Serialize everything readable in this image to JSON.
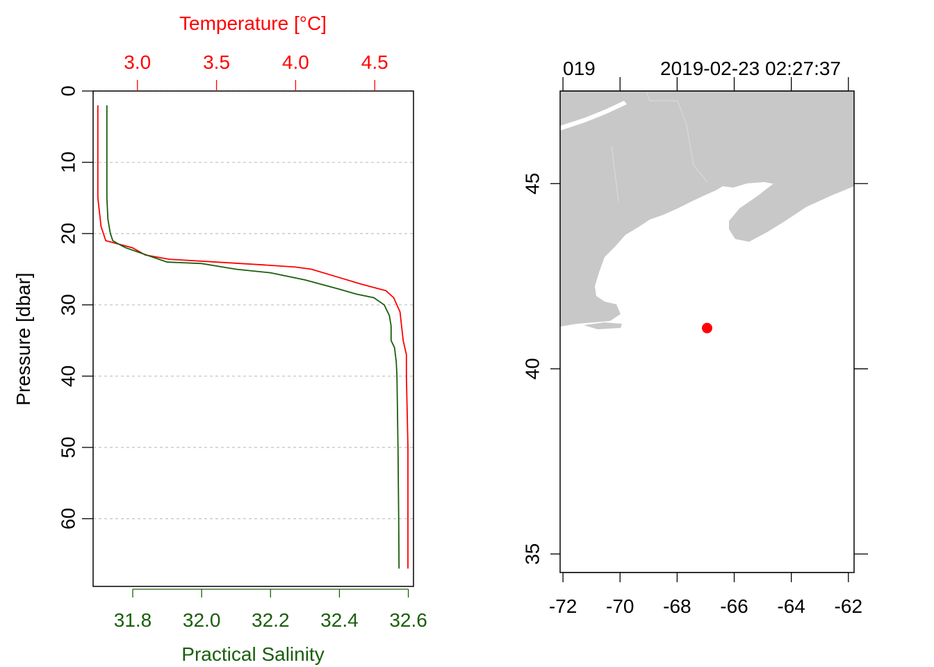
{
  "chart_data": [
    {
      "type": "line",
      "orientation": "vertical-profile",
      "y_axis": {
        "label": "Pressure [dbar]",
        "range": [
          0,
          69.5
        ],
        "reversed": true,
        "ticks": [
          0,
          10,
          20,
          30,
          40,
          50,
          60
        ],
        "tick_labels": [
          "0",
          "10",
          "20",
          "30",
          "40",
          "50",
          "60"
        ],
        "gridlines": true
      },
      "bottom_axis": {
        "label": "Practical Salinity",
        "color": "#1a5e0b",
        "range": [
          31.685,
          32.615
        ],
        "ticks": [
          31.8,
          32.0,
          32.2,
          32.4,
          32.6
        ],
        "tick_labels": [
          "31.8",
          "32.0",
          "32.2",
          "32.4",
          "32.6"
        ]
      },
      "top_axis": {
        "label": "Temperature [°C]",
        "color": "#ff0000",
        "range": [
          2.72,
          4.745
        ],
        "ticks": [
          3.0,
          3.5,
          4.0,
          4.5
        ],
        "tick_labels": [
          "3.0",
          "3.5",
          "4.0",
          "4.5"
        ]
      },
      "series": [
        {
          "quantity": "temperature",
          "axis": "top",
          "color": "#ff0000",
          "points": [
            [
              2.75,
              2
            ],
            [
              2.75,
              10
            ],
            [
              2.75,
              15
            ],
            [
              2.76,
              17
            ],
            [
              2.77,
              19
            ],
            [
              2.8,
              21
            ],
            [
              2.97,
              22
            ],
            [
              3.05,
              23
            ],
            [
              3.2,
              23.6
            ],
            [
              3.5,
              24
            ],
            [
              3.8,
              24.4
            ],
            [
              4.0,
              24.7
            ],
            [
              4.1,
              25
            ],
            [
              4.25,
              26
            ],
            [
              4.4,
              27
            ],
            [
              4.5,
              27.6
            ],
            [
              4.57,
              28
            ],
            [
              4.62,
              29
            ],
            [
              4.66,
              31
            ],
            [
              4.68,
              35
            ],
            [
              4.7,
              37
            ],
            [
              4.7,
              40
            ],
            [
              4.71,
              50
            ],
            [
              4.71,
              60
            ],
            [
              4.71,
              67
            ]
          ]
        },
        {
          "quantity": "salinity",
          "axis": "bottom",
          "color": "#1a5e0b",
          "points": [
            [
              31.725,
              2
            ],
            [
              31.725,
              10
            ],
            [
              31.725,
              15
            ],
            [
              31.728,
              18
            ],
            [
              31.735,
              20
            ],
            [
              31.742,
              21
            ],
            [
              31.76,
              21.5
            ],
            [
              31.78,
              22
            ],
            [
              31.84,
              23
            ],
            [
              31.9,
              24
            ],
            [
              32.0,
              24.2
            ],
            [
              32.1,
              25
            ],
            [
              32.2,
              25.5
            ],
            [
              32.3,
              26.5
            ],
            [
              32.4,
              27.8
            ],
            [
              32.45,
              28.5
            ],
            [
              32.5,
              29
            ],
            [
              32.53,
              30
            ],
            [
              32.545,
              31.5
            ],
            [
              32.55,
              33
            ],
            [
              32.55,
              35
            ],
            [
              32.56,
              36
            ],
            [
              32.565,
              38
            ],
            [
              32.567,
              40
            ],
            [
              32.57,
              50
            ],
            [
              32.572,
              60
            ],
            [
              32.573,
              67
            ]
          ]
        }
      ]
    },
    {
      "type": "map",
      "x_axis": {
        "range": [
          -72.1,
          -61.8
        ],
        "ticks": [
          -72,
          -70,
          -68,
          -66,
          -64,
          -62
        ],
        "tick_labels": [
          "-72",
          "-70",
          "-68",
          "-66",
          "-64",
          "-62"
        ]
      },
      "y_axis": {
        "range": [
          34.5,
          47.5
        ],
        "ticks": [
          35,
          40,
          45
        ],
        "tick_labels": [
          "35",
          "40",
          "45"
        ]
      },
      "top_axis": {
        "ticks": [
          -72,
          -70,
          -68,
          -66,
          -64,
          -62
        ],
        "labels": [
          "019",
          "2019-02-23 02:27:37"
        ]
      },
      "land_color": "#c8c8c8",
      "station": {
        "lon": -66.95,
        "lat": 41.1,
        "color": "#ff0000"
      }
    }
  ]
}
